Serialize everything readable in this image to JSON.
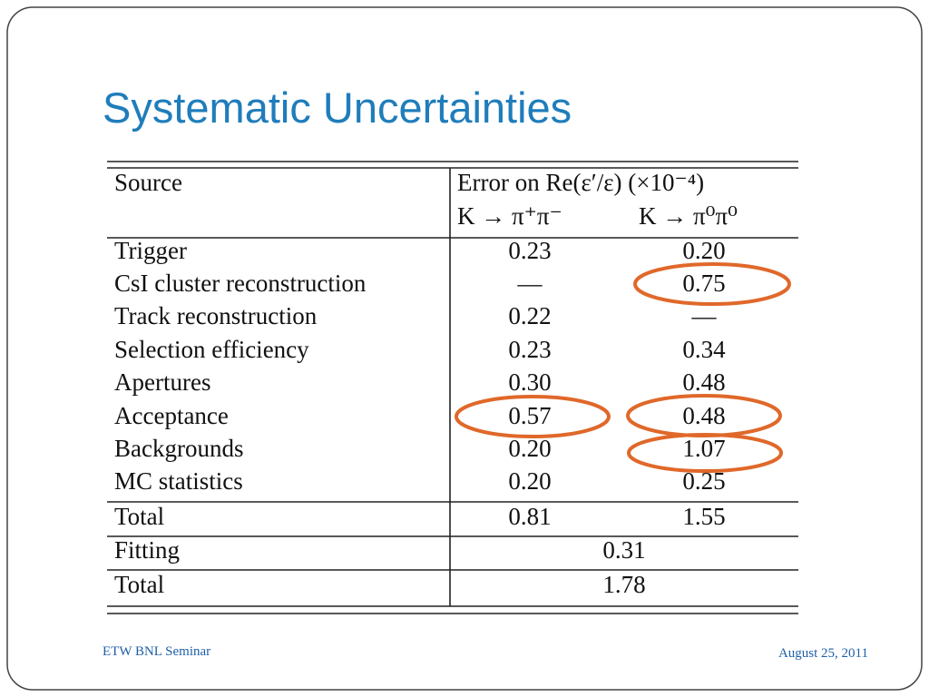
{
  "title": "Systematic Uncertainties",
  "table": {
    "header": [
      "Source",
      "Error on Re(ε′/ε) (×10⁻⁴)"
    ],
    "subheader": [
      "K → π⁺π⁻",
      "K → π⁰π⁰"
    ],
    "rows": [
      [
        "Trigger",
        "0.23",
        "0.20"
      ],
      [
        "CsI cluster reconstruction",
        "—",
        "0.75"
      ],
      [
        "Track reconstruction",
        "0.22",
        "—"
      ],
      [
        "Selection efficiency",
        "0.23",
        "0.34"
      ],
      [
        "Apertures",
        "0.30",
        "0.48"
      ],
      [
        "Acceptance",
        "0.57",
        "0.48"
      ],
      [
        "Backgrounds",
        "0.20",
        "1.07"
      ],
      [
        "MC statistics",
        "0.20",
        "0.25"
      ],
      [
        "Total",
        "0.81",
        "1.55"
      ],
      [
        "Fitting",
        "0.31"
      ],
      [
        "Total",
        "1.78"
      ]
    ]
  },
  "footer": {
    "left": "ETW BNL Seminar",
    "right": "August 25, 2011"
  }
}
